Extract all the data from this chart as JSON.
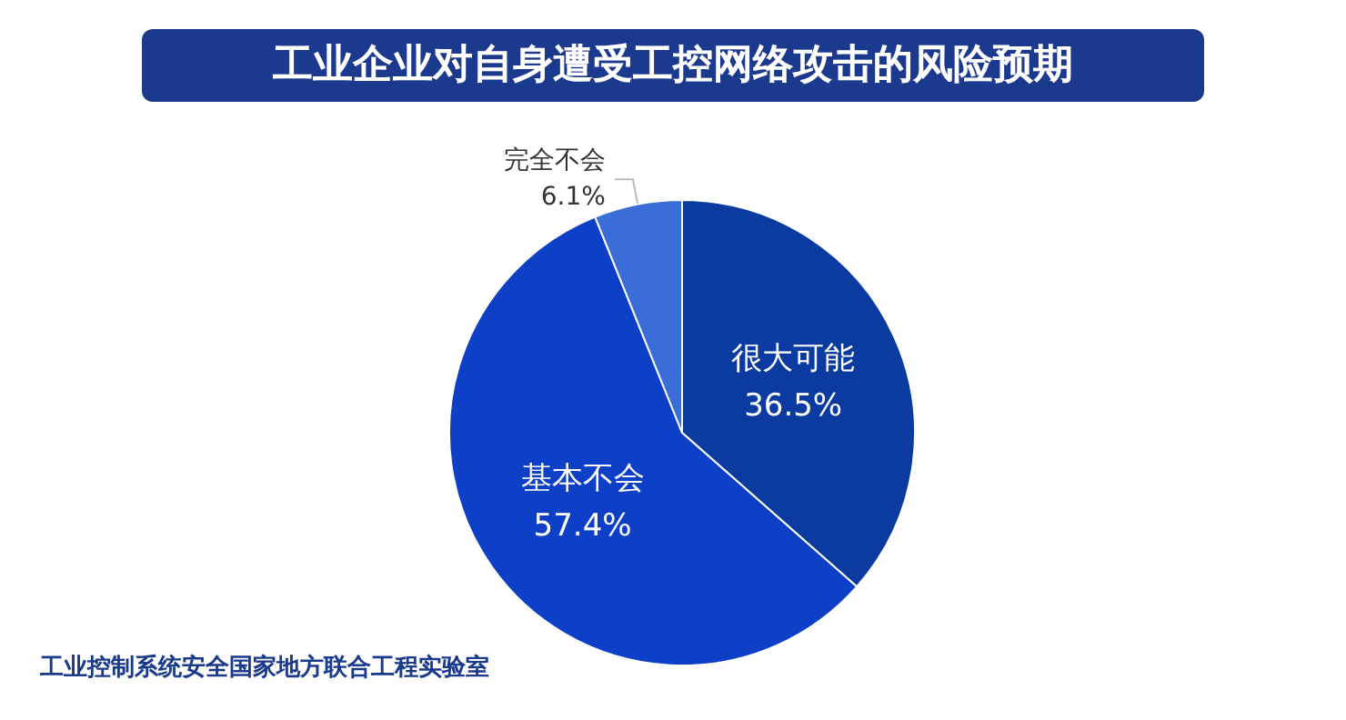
{
  "chart_data": {
    "type": "pie",
    "title": "工业企业对自身遭受工控网络攻击的风险预期",
    "categories": [
      "很大可能",
      "基本不会",
      "完全不会"
    ],
    "values": [
      36.5,
      57.4,
      6.1
    ],
    "value_labels": [
      "36.5%",
      "57.4%",
      "6.1%"
    ],
    "colors": [
      "#0b3ba0",
      "#0d40c6",
      "#3a6dd8"
    ],
    "legend": false,
    "annotations": [
      "工业控制系统安全国家地方联合工程实验室"
    ]
  }
}
